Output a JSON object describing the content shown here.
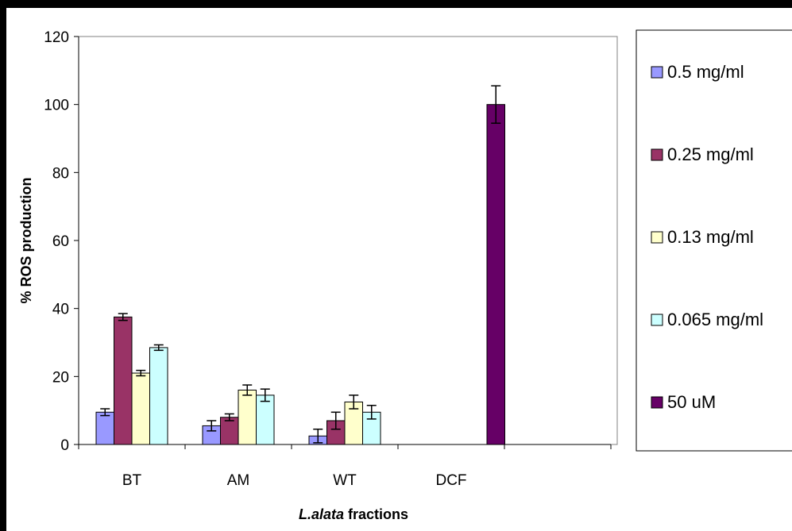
{
  "chart_data": {
    "type": "bar",
    "title": "",
    "ylabel": "% ROS production",
    "xlabel": {
      "italic_part": "L.alata",
      "rest": " fractions"
    },
    "ylim": [
      0,
      120
    ],
    "yticks": [
      0,
      20,
      40,
      60,
      80,
      100,
      120
    ],
    "grid": false,
    "legend_position": "right",
    "categories": [
      "BT",
      "AM",
      "WT",
      "DCF"
    ],
    "series": [
      {
        "name": "0.5 mg/ml",
        "color": "#9999ff",
        "values": [
          9.5,
          5.5,
          2.5,
          null
        ],
        "errors": [
          1.0,
          1.5,
          2.0,
          null
        ]
      },
      {
        "name": "0.25 mg/ml",
        "color": "#993366",
        "values": [
          37.5,
          8.0,
          7.0,
          null
        ],
        "errors": [
          1.0,
          1.0,
          2.5,
          null
        ]
      },
      {
        "name": "0.13 mg/ml",
        "color": "#ffffcc",
        "values": [
          21.0,
          16.0,
          12.5,
          null
        ],
        "errors": [
          0.8,
          1.5,
          2.0,
          null
        ]
      },
      {
        "name": "0.065 mg/ml",
        "color": "#ccffff",
        "values": [
          28.5,
          14.5,
          9.5,
          null
        ],
        "errors": [
          0.8,
          1.8,
          2.0,
          null
        ]
      },
      {
        "name": "50 uM",
        "color": "#660066",
        "values": [
          null,
          null,
          null,
          100.0
        ],
        "errors": [
          null,
          null,
          null,
          5.5
        ]
      }
    ]
  }
}
